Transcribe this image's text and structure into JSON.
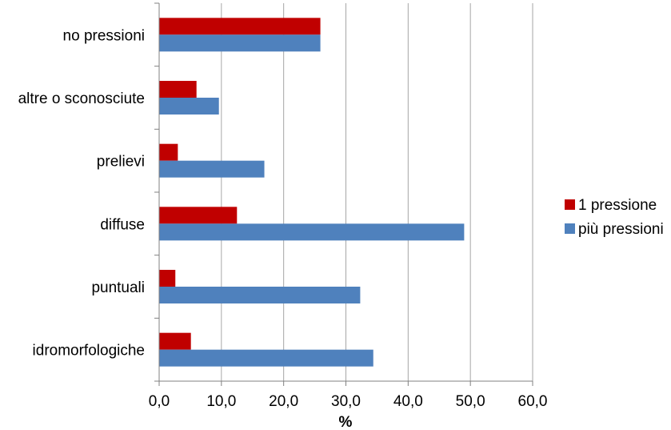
{
  "chart_data": {
    "type": "bar",
    "orientation": "horizontal",
    "categories": [
      "no pressioni",
      "altre o sconosciute",
      "prelievi",
      "diffuse",
      "puntuali",
      "idromorfologiche"
    ],
    "series": [
      {
        "name": "1 pressione",
        "values": [
          25.9,
          6.0,
          3.0,
          12.5,
          2.6,
          5.1
        ]
      },
      {
        "name": "più pressioni",
        "values": [
          25.9,
          9.6,
          16.9,
          49.0,
          32.3,
          34.4
        ]
      }
    ],
    "xlabel": "%",
    "ylabel": "",
    "xlim": [
      0,
      60
    ],
    "ticks": [
      "0,0",
      "10,0",
      "20,0",
      "30,0",
      "40,0",
      "50,0",
      "60,0"
    ],
    "grid": true,
    "legend_position": "right",
    "colors": {
      "1 pressione": "#c00000",
      "più pressioni": "#4f81bd",
      "grid": "#a6a6a6",
      "axis": "#808080"
    }
  }
}
